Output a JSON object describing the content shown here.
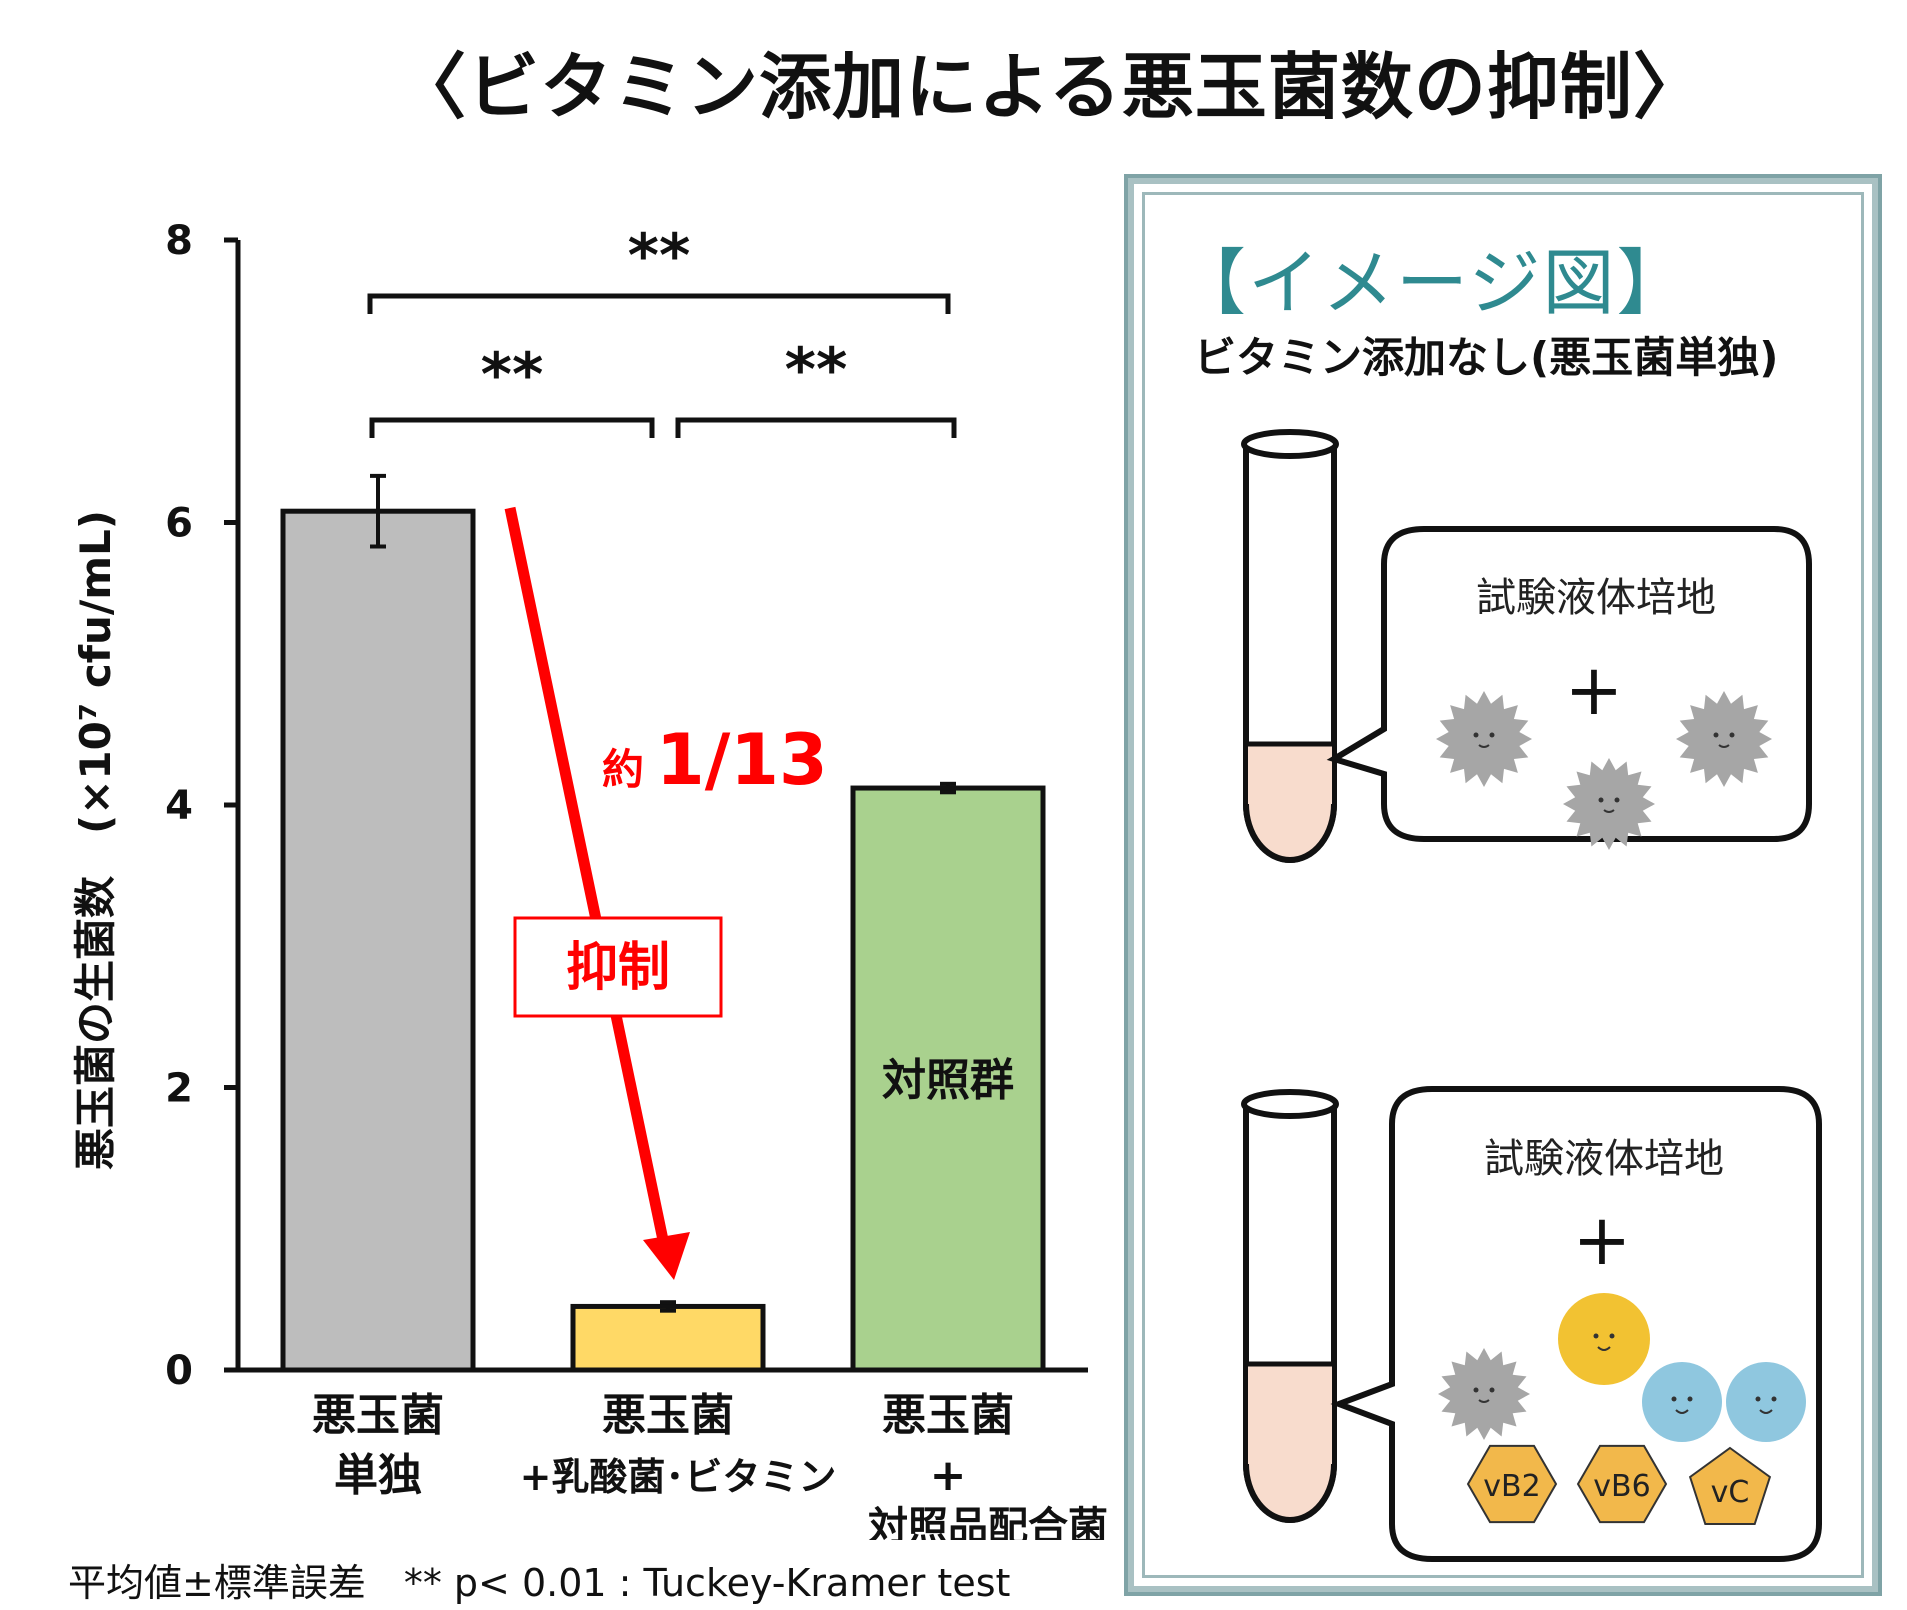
{
  "title": "〈ビタミン添加による悪玉菌数の抑制〉",
  "chart_data": {
    "type": "bar",
    "ylabel": "悪玉菌の生菌数　(×10⁷ cfu/mL)",
    "ylim": [
      0,
      8
    ],
    "yticks": [
      "0",
      "2",
      "4",
      "6",
      "8"
    ],
    "categories": [
      {
        "line1": "悪玉菌",
        "line2": "単独",
        "line3": ""
      },
      {
        "line1": "悪玉菌",
        "line2": "+乳酸菌･ビタミン",
        "line3": ""
      },
      {
        "line1": "悪玉菌",
        "line2": "+",
        "line3": "対照品配合菌"
      }
    ],
    "values": [
      6.08,
      0.45,
      4.12
    ],
    "errors": [
      0.25,
      0.03,
      0.03
    ],
    "colors": [
      "#bdbdbd",
      "#ffd966",
      "#a9d18e"
    ],
    "bar_inner_labels": [
      "",
      "",
      "対照群"
    ],
    "significance": [
      {
        "from": 0,
        "to": 2,
        "label": "**"
      },
      {
        "from": 0,
        "to": 1,
        "label": "**"
      },
      {
        "from": 1,
        "to": 2,
        "label": "**"
      }
    ],
    "annotations": {
      "reduction_prefix": "約",
      "reduction_value": "1/13",
      "suppression_label": "抑制",
      "accent_color": "#ff0000"
    }
  },
  "footnote": "平均値±標準誤差　** p< 0.01 : Tuckey-Kramer test",
  "illustration": {
    "title": "【イメージ図】",
    "subtitle": "ビタミン添加なし(悪玉菌単独)",
    "panel1": {
      "label": "試験液体培地",
      "plus": "+"
    },
    "panel2": {
      "label": "試験液体培地",
      "plus": "+",
      "vitamins": [
        "vB2",
        "vB6",
        "vC"
      ]
    },
    "icons": [
      "test-tube-icon",
      "bad-bacteria-icon",
      "lactic-acid-bacteria-icon",
      "vitamin-hexagon-icon",
      "vitamin-pentagon-icon"
    ]
  }
}
